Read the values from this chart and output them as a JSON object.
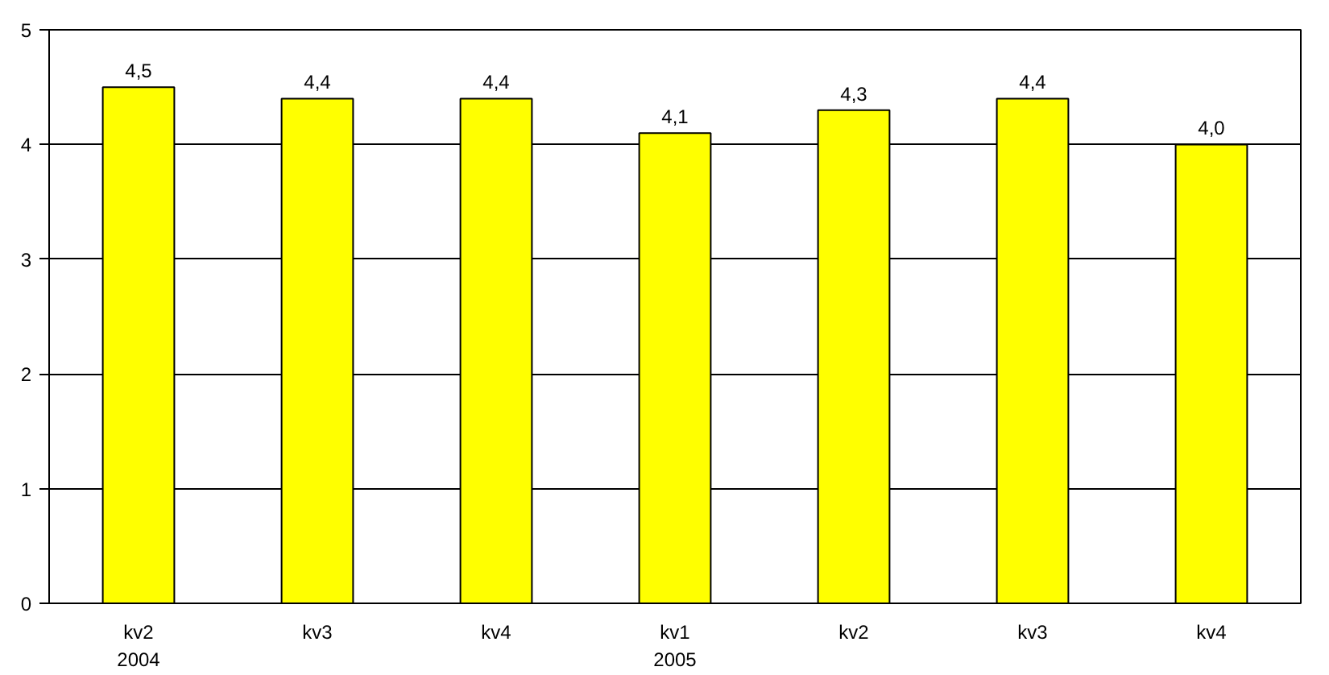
{
  "chart_data": {
    "type": "bar",
    "categories": [
      "kv2\n2004",
      "kv3",
      "kv4",
      "kv1\n2005",
      "kv2",
      "kv3",
      "kv4"
    ],
    "values": [
      4.5,
      4.4,
      4.4,
      4.1,
      4.3,
      4.4,
      4.0
    ],
    "value_labels": [
      "4,5",
      "4,4",
      "4,4",
      "4,1",
      "4,3",
      "4,4",
      "4,0"
    ],
    "color": "#ffff00",
    "ylim": [
      0,
      5
    ],
    "yticks": [
      0,
      1,
      2,
      3,
      4,
      5
    ],
    "grid": "y"
  }
}
